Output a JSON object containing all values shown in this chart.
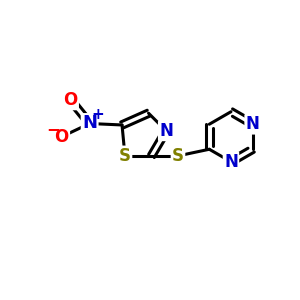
{
  "background_color": "#ffffff",
  "bond_color": "#000000",
  "atom_colors": {
    "N": "#0000cc",
    "S": "#808000",
    "O": "#ff0000",
    "C": "#000000"
  },
  "font_size": 12,
  "figsize": [
    3.0,
    3.0
  ],
  "dpi": 100,
  "xlim": [
    0,
    10
  ],
  "ylim": [
    0,
    10
  ]
}
